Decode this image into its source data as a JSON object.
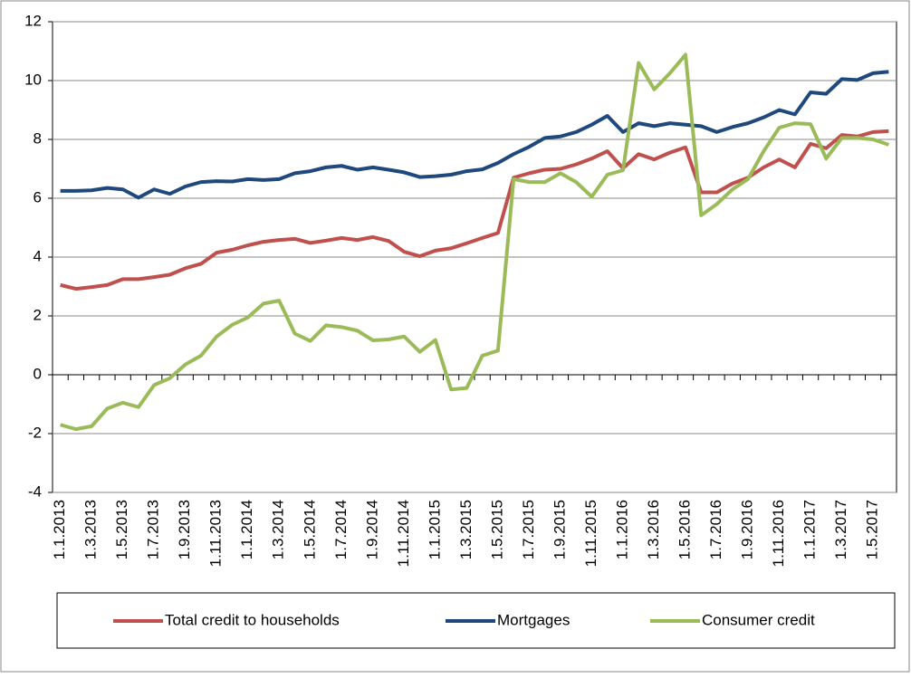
{
  "chart_data": {
    "type": "line",
    "categories": [
      "1.1.2013",
      null,
      "1.3.2013",
      null,
      "1.5.2013",
      null,
      "1.7.2013",
      null,
      "1.9.2013",
      null,
      "1.11.2013",
      null,
      "1.1.2014",
      null,
      "1.3.2014",
      null,
      "1.5.2014",
      null,
      "1.7.2014",
      null,
      "1.9.2014",
      null,
      "1.11.2014",
      null,
      "1.1.2015",
      null,
      "1.3.2015",
      null,
      "1.5.2015",
      null,
      "1.7.2015",
      null,
      "1.9.2015",
      null,
      "1.11.2015",
      null,
      "1.1.2016",
      null,
      "1.3.2016",
      null,
      "1.5.2016",
      null,
      "1.7.2016",
      null,
      "1.9.2016",
      null,
      "1.11.2016",
      null,
      "1.1.2017",
      null,
      "1.3.2017",
      null,
      "1.5.2017",
      null
    ],
    "series": [
      {
        "name": "Total credit to households",
        "color": "#c0504d",
        "values": [
          3.05,
          2.92,
          2.98,
          3.05,
          3.25,
          3.25,
          3.32,
          3.4,
          3.62,
          3.77,
          4.15,
          4.25,
          4.4,
          4.52,
          4.58,
          4.62,
          4.48,
          4.56,
          4.65,
          4.58,
          4.68,
          4.55,
          4.18,
          4.03,
          4.22,
          4.3,
          4.47,
          4.65,
          4.82,
          6.7,
          6.85,
          6.97,
          7.0,
          7.15,
          7.35,
          7.6,
          7.02,
          7.5,
          7.32,
          7.55,
          7.73,
          6.2,
          6.2,
          6.5,
          6.7,
          7.05,
          7.32,
          7.05,
          7.85,
          7.7,
          8.15,
          8.1,
          8.25,
          8.28
        ]
      },
      {
        "name": "Mortgages",
        "color": "#1f497d",
        "values": [
          6.25,
          6.25,
          6.27,
          6.35,
          6.3,
          6.02,
          6.3,
          6.15,
          6.4,
          6.55,
          6.58,
          6.57,
          6.65,
          6.62,
          6.65,
          6.85,
          6.92,
          7.05,
          7.1,
          6.97,
          7.05,
          6.97,
          6.88,
          6.72,
          6.75,
          6.8,
          6.92,
          6.98,
          7.2,
          7.5,
          7.75,
          8.05,
          8.1,
          8.25,
          8.5,
          8.8,
          8.25,
          8.55,
          8.45,
          8.55,
          8.5,
          8.45,
          8.25,
          8.42,
          8.55,
          8.75,
          9.0,
          8.85,
          9.6,
          9.55,
          10.05,
          10.02,
          10.25,
          10.3
        ]
      },
      {
        "name": "Consumer credit",
        "color": "#9bbb59",
        "values": [
          -1.7,
          -1.85,
          -1.75,
          -1.15,
          -0.95,
          -1.1,
          -0.35,
          -0.12,
          0.35,
          0.65,
          1.3,
          1.7,
          1.95,
          2.42,
          2.52,
          1.4,
          1.15,
          1.68,
          1.62,
          1.5,
          1.17,
          1.2,
          1.3,
          0.78,
          1.18,
          -0.5,
          -0.45,
          0.65,
          0.82,
          6.65,
          6.55,
          6.55,
          6.85,
          6.55,
          6.05,
          6.8,
          6.95,
          10.6,
          9.7,
          10.25,
          10.88,
          5.42,
          5.8,
          6.3,
          6.65,
          7.6,
          8.4,
          8.55,
          8.52,
          7.35,
          8.05,
          8.05,
          8.0,
          7.82
        ]
      }
    ],
    "ylim": [
      -4,
      12
    ],
    "yticks": [
      -4,
      -2,
      0,
      2,
      4,
      6,
      8,
      10,
      12
    ],
    "grid": true
  }
}
